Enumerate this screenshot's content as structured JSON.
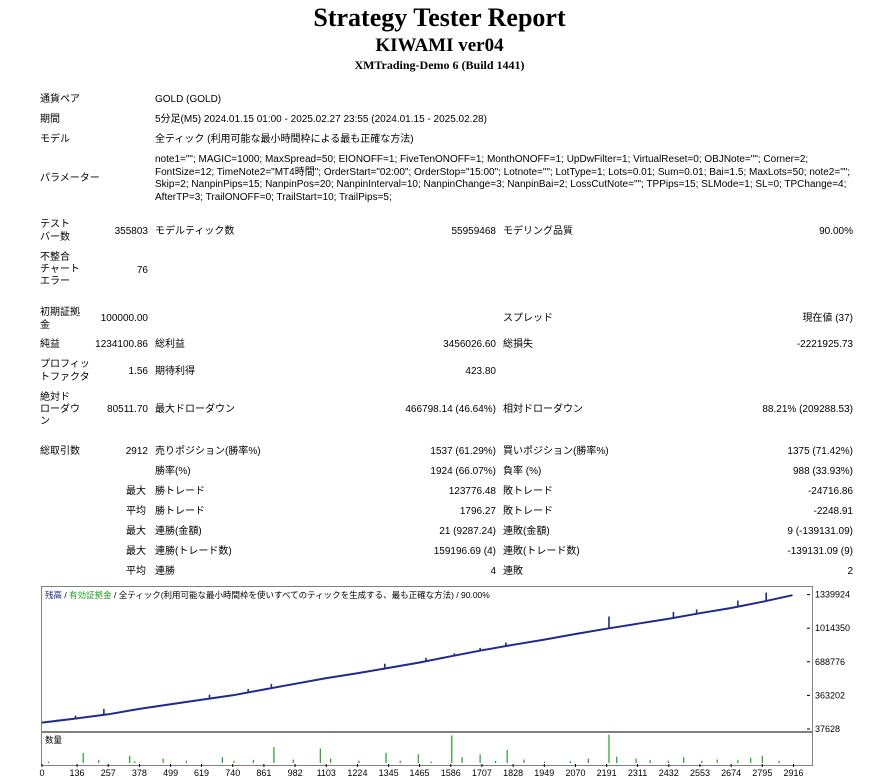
{
  "header": {
    "title": "Strategy Tester Report",
    "ea_name": "KIWAMI ver04",
    "server": "XMTrading-Demo 6 (Build 1441)"
  },
  "info": {
    "symbol_label": "通貨ペア",
    "symbol_value": "GOLD (GOLD)",
    "period_label": "期間",
    "period_value": "5分足(M5) 2024.01.15 01:00 - 2025.02.27 23:55 (2024.01.15 - 2025.02.28)",
    "model_label": "モデル",
    "model_value": "全ティック (利用可能な最小時間枠による最も正確な方法)",
    "params_label": "パラメーター",
    "params_value": "note1=\"\"; MAGIC=1000; MaxSpread=50; EIONOFF=1; FiveTenONOFF=1; MonthONOFF=1; UpDwFilter=1; VirtualReset=0; OBJNote=\"\"; Corner=2; FontSize=12; TimeNote2=\"MT4時間\"; OrderStart=\"02:00\"; OrderStop=\"15:00\"; Lotnote=\"\"; LotType=1; Lots=0.01; Sum=0.01; Bai=1.5; MaxLots=50; note2=\"\"; Skip=2; NanpinPips=15; NanpinPos=20; NanpinInterval=10; NanpinChange=3; NanpinBai=2; LossCutNote=\"\"; TPPips=15; SLMode=1; SL=0; TPChange=4; AfterTP=3; TrailONOFF=0; TrailStart=10; TrailPips=5;"
  },
  "stats": {
    "bars_label_1": "テスト",
    "bars_label_2": "バー数",
    "bars_value": "355803",
    "ticks_label": "モデルティック数",
    "ticks_value": "55959468",
    "quality_label": "モデリング品質",
    "quality_value": "90.00%",
    "mismatch_label_1": "不整合",
    "mismatch_label_2": "チャート",
    "mismatch_label_3": "エラー",
    "mismatch_value": "76",
    "deposit_label_1": "初期証拠",
    "deposit_label_2": "金",
    "deposit_value": "100000.00",
    "spread_label": "スプレッド",
    "spread_value": "現在値 (37)",
    "net_label": "純益",
    "net_value": "1234100.86",
    "gross_profit_label": "総利益",
    "gross_profit_value": "3456026.60",
    "gross_loss_label": "総損失",
    "gross_loss_value": "-2221925.73",
    "pf_label_1": "プロフィッ",
    "pf_label_2": "トファクタ",
    "pf_value": "1.56",
    "expected_label": "期待利得",
    "expected_value": "423.80",
    "absdd_label_1": "絶対ド",
    "absdd_label_2": "ローダウ",
    "absdd_label_3": "ン",
    "absdd_value": "80511.70",
    "maxdd_label": "最大ドローダウン",
    "maxdd_value": "466798.14 (46.64%)",
    "reldd_label": "相対ドローダウン",
    "reldd_value": "88.21% (209288.53)",
    "trades_label": "総取引数",
    "trades_value": "2912",
    "short_label": "売りポジション(勝率%)",
    "short_value": "1537 (61.29%)",
    "long_label": "買いポジション(勝率%)",
    "long_value": "1375 (71.42%)",
    "win_label": "勝率(%)",
    "win_value": "1924 (66.07%)",
    "loss_label": "負率 (%)",
    "loss_value": "988 (33.93%)",
    "max_label": "最大",
    "avg_label": "平均",
    "largest_win_label": "勝トレード",
    "largest_win_value": "123776.48",
    "largest_loss_label": "敗トレード",
    "largest_loss_value": "-24716.86",
    "avg_win_label": "勝トレード",
    "avg_win_value": "1796.27",
    "avg_loss_label": "敗トレード",
    "avg_loss_value": "-2248.91",
    "cons_wins_money_label": "連勝(金額)",
    "cons_wins_money_value": "21 (9287.24)",
    "cons_losses_money_label": "連敗(金額)",
    "cons_losses_money_value": "9 (-139131.09)",
    "cons_wins_count_label": "連勝(トレード数)",
    "cons_wins_count_value": "159196.69 (4)",
    "cons_losses_count_label": "連敗(トレード数)",
    "cons_losses_count_value": "-139131.09 (9)",
    "avg_cons_wins_label": "連勝",
    "avg_cons_wins_value": "4",
    "avg_cons_losses_label": "連敗",
    "avg_cons_losses_value": "2"
  },
  "chart_data": {
    "type": "line",
    "legend": {
      "balance": "残高",
      "sep1": " / ",
      "equity": "有効証拠金",
      "sep2": " / ",
      "model": "全ティック(利用可能な最小時間枠を使いすべてのティックを生成する、最も正確な方法) / 90.00%"
    },
    "y_ticks": [
      "1339924",
      "1014350",
      "688776",
      "363202",
      "37628"
    ],
    "y_tick_values": [
      1339924,
      1014350,
      688776,
      363202,
      37628
    ],
    "ylim": [
      37628,
      1404000
    ],
    "xlim": [
      0,
      2980
    ],
    "x_ticks": [
      "0",
      "136",
      "257",
      "378",
      "499",
      "619",
      "740",
      "861",
      "982",
      "1103",
      "1224",
      "1345",
      "1465",
      "1586",
      "1707",
      "1828",
      "1949",
      "2070",
      "2191",
      "2311",
      "2432",
      "2553",
      "2674",
      "2795",
      "2916"
    ],
    "series": [
      {
        "name": "残高",
        "color": "#1e2a8c",
        "x": [
          0,
          136,
          257,
          378,
          499,
          619,
          740,
          861,
          982,
          1103,
          1224,
          1345,
          1465,
          1586,
          1707,
          1828,
          1949,
          2070,
          2191,
          2311,
          2432,
          2553,
          2674,
          2795,
          2912
        ],
        "y": [
          100000,
          140000,
          180000,
          232000,
          278000,
          322000,
          364000,
          420000,
          476000,
          531000,
          578000,
          630000,
          682000,
          742000,
          800000,
          854000,
          904000,
          958000,
          1010000,
          1058000,
          1106000,
          1160000,
          1210000,
          1270000,
          1334000
        ]
      }
    ],
    "equity_spikes": {
      "color": "#1e2a8c",
      "x": [
        60,
        130,
        240,
        650,
        800,
        890,
        1330,
        1490,
        1600,
        1700,
        1800,
        2200,
        2450,
        2540,
        2700,
        2810
      ],
      "y": [
        128000,
        168000,
        232000,
        370000,
        425000,
        475000,
        670000,
        728000,
        770000,
        824000,
        876000,
        1128000,
        1172000,
        1196000,
        1282000,
        1360000
      ]
    },
    "volume_label": "数量",
    "volume_color": "#1fa31f",
    "volume": {
      "x": [
        25,
        160,
        220,
        340,
        360,
        470,
        560,
        700,
        745,
        820,
        900,
        975,
        1080,
        1120,
        1230,
        1335,
        1390,
        1460,
        1510,
        1590,
        1630,
        1700,
        1760,
        1805,
        1870,
        1950,
        2050,
        2120,
        2200,
        2230,
        2305,
        2360,
        2430,
        2490,
        2560,
        2620,
        2700,
        2750,
        2795,
        2860
      ],
      "y": [
        0.05,
        0.35,
        0.1,
        0.25,
        0.06,
        0.15,
        0.08,
        0.2,
        0.08,
        0.1,
        0.55,
        0.12,
        0.5,
        0.15,
        0.08,
        0.35,
        0.08,
        0.3,
        0.05,
        0.95,
        0.2,
        0.3,
        0.07,
        0.45,
        0.12,
        0.05,
        0.07,
        0.15,
        0.98,
        0.22,
        0.15,
        0.1,
        0.08,
        0.2,
        0.08,
        0.12,
        0.1,
        0.18,
        0.25,
        0.08
      ]
    }
  }
}
